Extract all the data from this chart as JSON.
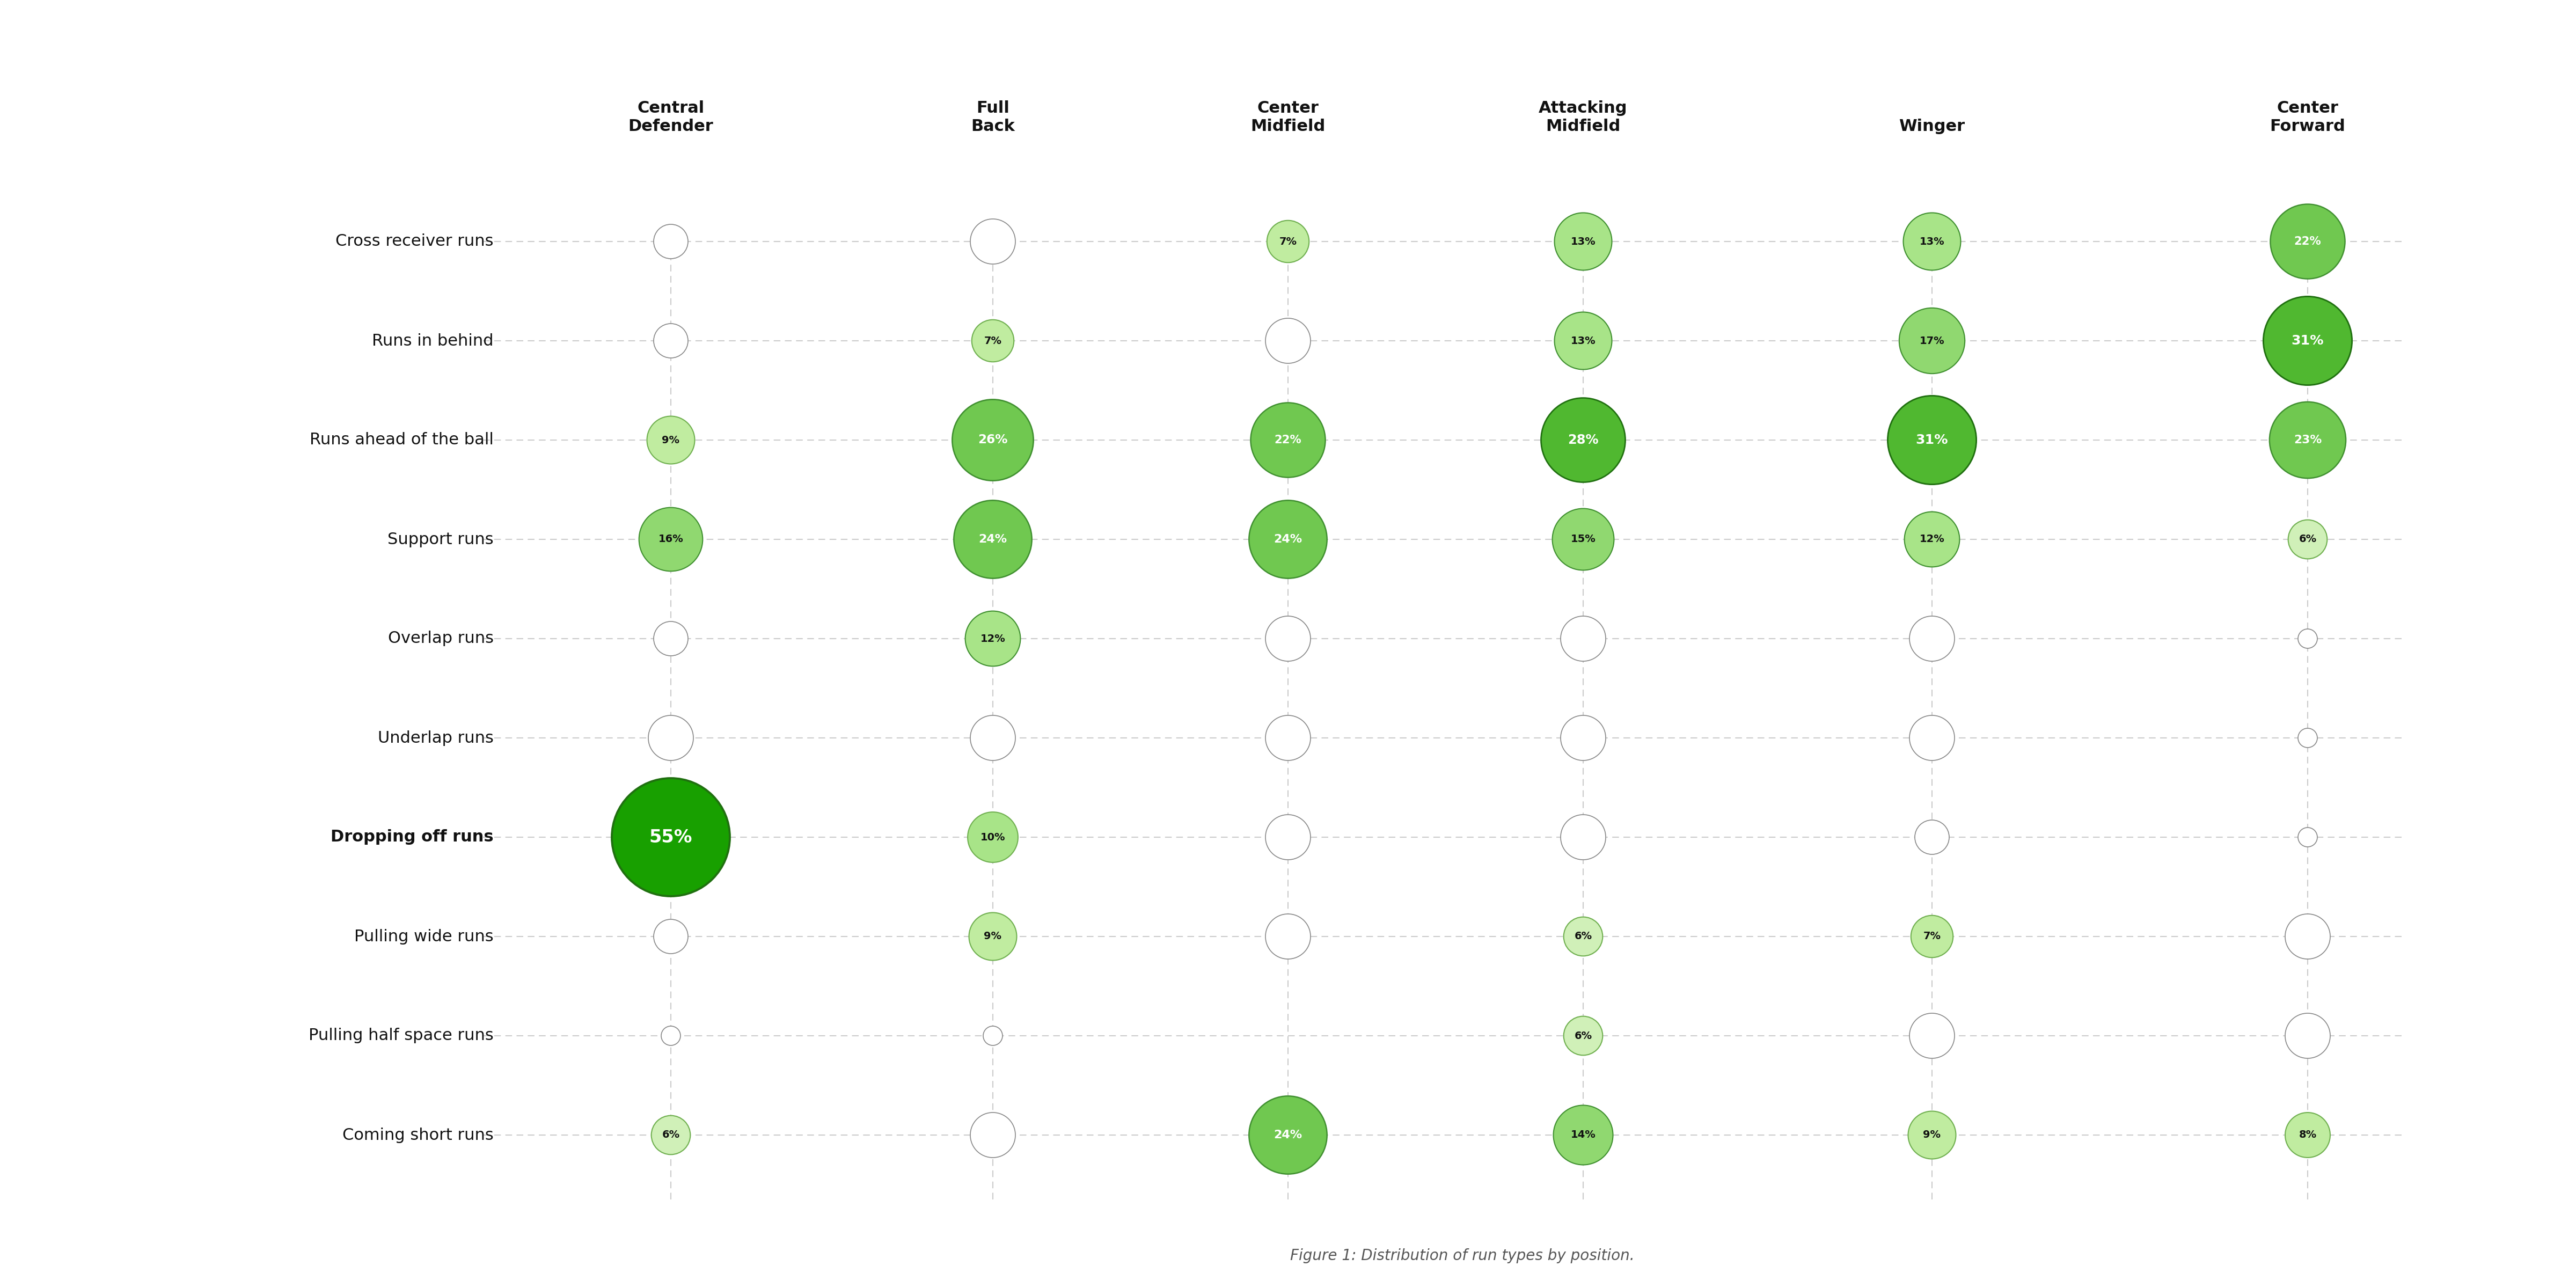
{
  "positions": [
    "Central\nDefender",
    "Full\nBack",
    "Center\nMidfield",
    "Attacking\nMidfield",
    "Winger",
    "Center\nForward"
  ],
  "run_types": [
    "Cross receiver runs",
    "Runs in behind",
    "Runs ahead of the ball",
    "Support runs",
    "Overlap runs",
    "Underlap runs",
    "Dropping off runs",
    "Pulling wide runs",
    "Pulling half space runs",
    "Coming short runs"
  ],
  "values": {
    "Cross receiver runs": [
      0,
      0,
      7,
      13,
      13,
      22
    ],
    "Runs in behind": [
      0,
      7,
      0,
      13,
      17,
      31
    ],
    "Runs ahead of the ball": [
      9,
      26,
      22,
      28,
      31,
      23
    ],
    "Support runs": [
      16,
      24,
      24,
      15,
      12,
      6
    ],
    "Overlap runs": [
      0,
      12,
      0,
      0,
      0,
      0
    ],
    "Underlap runs": [
      0,
      0,
      0,
      0,
      0,
      0
    ],
    "Dropping off runs": [
      55,
      10,
      0,
      0,
      0,
      0
    ],
    "Pulling wide runs": [
      0,
      9,
      0,
      6,
      7,
      0
    ],
    "Pulling half space runs": [
      0,
      0,
      0,
      6,
      0,
      0
    ],
    "Coming short runs": [
      6,
      0,
      24,
      14,
      9,
      8
    ]
  },
  "zero_sizes": {
    "Cross receiver runs": [
      18,
      22,
      0,
      0,
      0,
      0
    ],
    "Runs in behind": [
      12,
      0,
      22,
      0,
      0,
      0
    ],
    "Runs ahead of the ball": [
      0,
      0,
      0,
      0,
      0,
      0
    ],
    "Support runs": [
      0,
      0,
      0,
      0,
      0,
      0
    ],
    "Overlap runs": [
      18,
      0,
      22,
      22,
      22,
      8
    ],
    "Underlap runs": [
      22,
      22,
      22,
      22,
      22,
      8
    ],
    "Dropping off runs": [
      0,
      0,
      22,
      22,
      12,
      8
    ],
    "Pulling wide runs": [
      18,
      0,
      22,
      0,
      0,
      22
    ],
    "Pulling half space runs": [
      10,
      10,
      0,
      0,
      22,
      22
    ],
    "Coming short runs": [
      0,
      22,
      0,
      0,
      0,
      0
    ]
  },
  "background_color": "#ffffff",
  "text_color": "#111111",
  "grid_color": "#cccccc",
  "title": "Figure 1: Distribution of run types by position.",
  "max_val": 55
}
